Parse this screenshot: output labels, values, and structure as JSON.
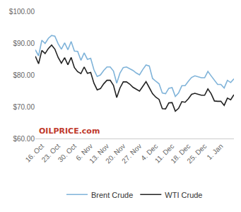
{
  "chart_data": {
    "type": "line",
    "categories": [
      null,
      null,
      "16. Oct",
      null,
      null,
      null,
      null,
      "23. Oct",
      null,
      null,
      null,
      null,
      "30. Oct",
      null,
      null,
      null,
      null,
      "6. Nov",
      null,
      null,
      null,
      null,
      "13. Nov",
      null,
      null,
      null,
      null,
      "20. Nov",
      null,
      null,
      null,
      null,
      "27. Nov",
      null,
      null,
      null,
      null,
      "4. Dec",
      null,
      null,
      null,
      null,
      "11. Dec",
      null,
      null,
      null,
      null,
      "18. Dec",
      null,
      null,
      null,
      null,
      "25. Dec",
      null,
      null,
      null,
      null,
      "1. Jan",
      null,
      null,
      null,
      null
    ],
    "series": [
      {
        "name": "Brent Crude",
        "color": "#7fb3d9",
        "values": [
          87.9,
          86.0,
          90.9,
          89.9,
          91.5,
          92.4,
          92.2,
          89.8,
          88.1,
          90.1,
          87.9,
          90.5,
          87.5,
          87.4,
          84.6,
          86.9,
          84.9,
          85.2,
          81.6,
          79.5,
          80.0,
          81.4,
          82.5,
          82.5,
          81.2,
          77.4,
          80.6,
          82.3,
          82.5,
          82.0,
          81.4,
          80.6,
          80.0,
          81.7,
          83.1,
          82.8,
          78.9,
          78.0,
          77.2,
          74.3,
          74.1,
          75.8,
          76.0,
          73.2,
          74.3,
          76.6,
          76.6,
          78.0,
          79.2,
          79.7,
          79.4,
          79.1,
          79.1,
          81.1,
          79.7,
          78.4,
          77.0,
          77.0,
          75.9,
          78.3,
          77.6,
          78.8
        ]
      },
      {
        "name": "WTI Crude",
        "color": "#222222",
        "values": [
          85.9,
          83.5,
          87.7,
          86.7,
          88.3,
          89.4,
          88.1,
          85.5,
          83.7,
          85.4,
          83.2,
          85.5,
          82.3,
          81.0,
          80.4,
          82.5,
          80.5,
          80.8,
          77.4,
          75.3,
          75.7,
          77.2,
          78.3,
          78.3,
          76.7,
          72.9,
          75.9,
          77.8,
          77.8,
          77.1,
          76.1,
          75.5,
          74.9,
          76.4,
          77.9,
          76.0,
          74.1,
          73.0,
          72.3,
          69.4,
          69.3,
          71.2,
          71.3,
          68.6,
          69.5,
          71.6,
          71.4,
          72.5,
          73.9,
          74.2,
          73.9,
          73.6,
          73.6,
          75.6,
          74.1,
          71.8,
          71.7,
          71.7,
          70.4,
          72.7,
          72.2,
          73.8
        ]
      }
    ],
    "ylim": [
      60,
      100
    ],
    "yticks": [
      {
        "value": 60,
        "label": "$60.00"
      },
      {
        "value": 70,
        "label": "$70.00"
      },
      {
        "value": 80,
        "label": "$80.00"
      },
      {
        "value": 90,
        "label": "$90.00"
      },
      {
        "value": 100,
        "label": "$100.00"
      }
    ],
    "grid": false,
    "legend": "bottom",
    "annotations": [
      "OILPRICE.com"
    ]
  }
}
